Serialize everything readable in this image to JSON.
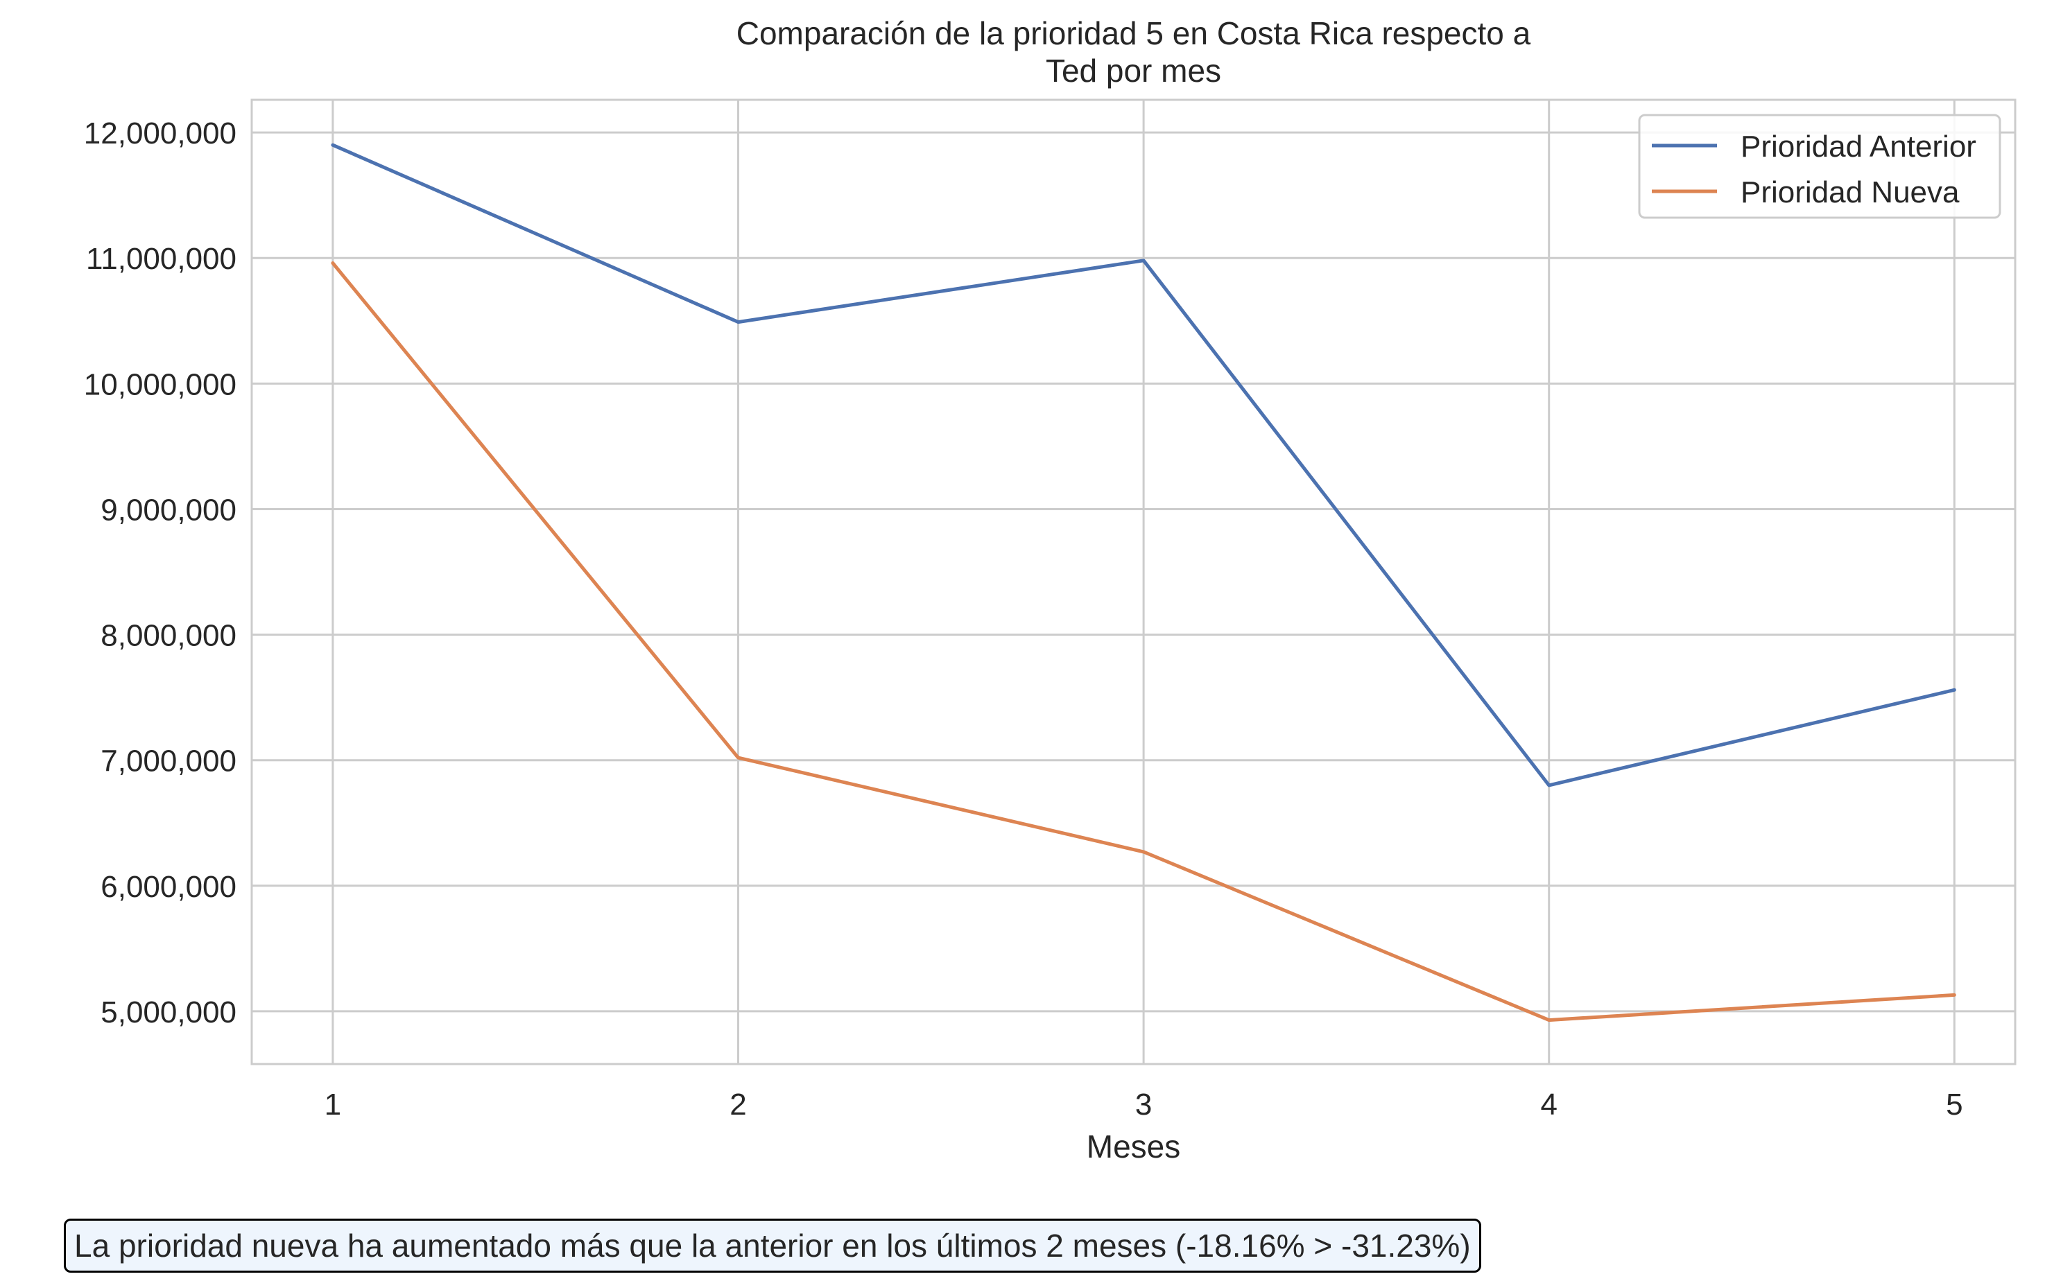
{
  "chart_data": {
    "type": "line",
    "title": "Comparación de la prioridad 5 en Costa Rica respecto a\nTed por mes",
    "title_lines": [
      "Comparación de la prioridad 5 en Costa Rica respecto a",
      "Ted por mes"
    ],
    "xlabel": "Meses",
    "ylabel": "",
    "x": [
      1,
      2,
      3,
      4,
      5
    ],
    "x_tick_labels": [
      "1",
      "2",
      "3",
      "4",
      "5"
    ],
    "y_ticks": [
      5000000,
      6000000,
      7000000,
      8000000,
      9000000,
      10000000,
      11000000,
      12000000
    ],
    "y_tick_labels": [
      "5,000,000",
      "6,000,000",
      "7,000,000",
      "8,000,000",
      "9,000,000",
      "10,000,000",
      "11,000,000",
      "12,000,000"
    ],
    "xlim": [
      0.8,
      5.15
    ],
    "ylim": [
      4580000,
      12260000
    ],
    "grid": true,
    "legend_position": "top-right",
    "series": [
      {
        "name": "Prioridad Anterior",
        "color": "#4c72b0",
        "values": [
          11900000,
          10490000,
          10980000,
          6800000,
          7560000
        ]
      },
      {
        "name": "Prioridad Nueva",
        "color": "#dd8452",
        "values": [
          10960000,
          7020000,
          6270000,
          4930000,
          5130000
        ]
      }
    ]
  },
  "annotation": {
    "text": "La prioridad nueva ha aumentado más que la anterior en los últimos 2 meses (-18.16% > -31.23%)",
    "background": "#eef5fd",
    "border_color": "#000000"
  }
}
